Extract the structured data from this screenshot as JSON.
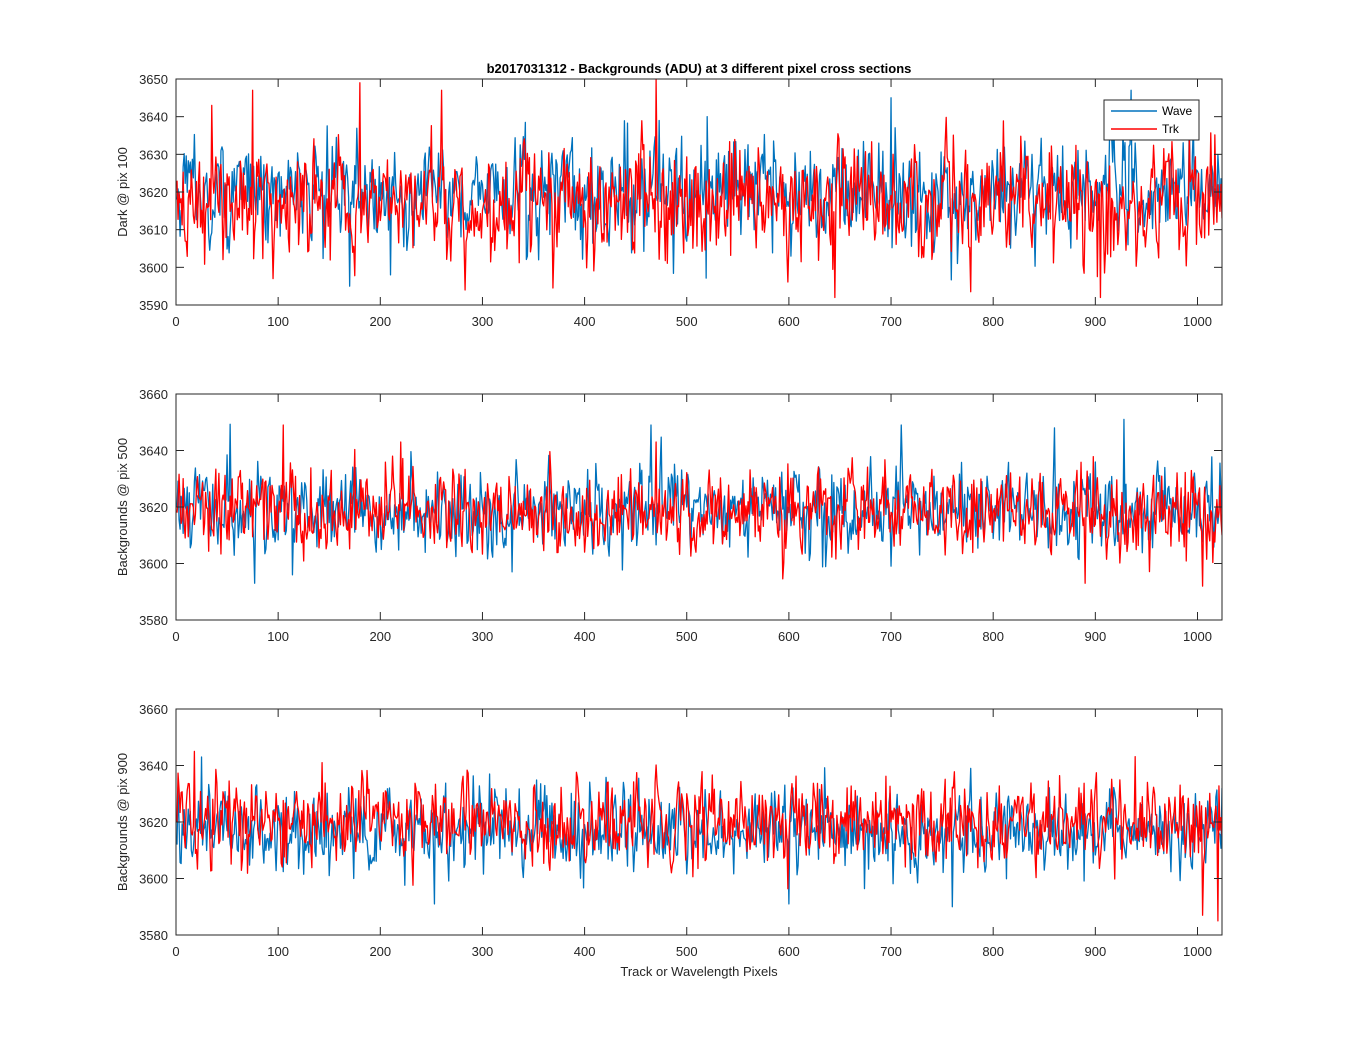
{
  "figure": {
    "title": "b2017031312 - Backgrounds (ADU) at 3 different pixel cross sections",
    "xlabel": "Track or Wavelength Pixels",
    "colors": {
      "Wave": "#0072BD",
      "Trk": "#FF0000",
      "axes": "#262626"
    }
  },
  "chart_data": [
    {
      "type": "line",
      "title": "b2017031312 - Backgrounds (ADU) at 3 different pixel cross sections",
      "ylabel": "Dark @ pix 100",
      "xlabel": "",
      "xlim": [
        0,
        1024
      ],
      "ylim": [
        3590,
        3650
      ],
      "xticks": [
        0,
        100,
        200,
        300,
        400,
        500,
        600,
        700,
        800,
        900,
        1000
      ],
      "yticks": [
        3590,
        3600,
        3610,
        3620,
        3630,
        3640,
        3650
      ],
      "legend": {
        "location": "top-right",
        "entries": [
          "Wave",
          "Trk"
        ]
      },
      "series": [
        {
          "name": "Wave",
          "color": "#0072BD",
          "n_points": 1024,
          "x_range": [
            1,
            1024
          ],
          "mean": 3620,
          "min": 3594,
          "max": 3647,
          "anchors": [
            [
              1,
              3618
            ],
            [
              30,
              3625
            ],
            [
              80,
              3614
            ],
            [
              170,
              3595
            ],
            [
              185,
              3627
            ],
            [
              210,
              3598
            ],
            [
              300,
              3622
            ],
            [
              450,
              3615
            ],
            [
              520,
              3640
            ],
            [
              620,
              3611
            ],
            [
              700,
              3645
            ],
            [
              830,
              3625
            ],
            [
              935,
              3647
            ],
            [
              985,
              3624
            ],
            [
              1024,
              3621
            ]
          ]
        },
        {
          "name": "Trk",
          "color": "#FF0000",
          "n_points": 1024,
          "x_range": [
            1,
            1024
          ],
          "mean": 3617,
          "min": 3592,
          "max": 3650,
          "anchors": [
            [
              1,
              3623
            ],
            [
              35,
              3643
            ],
            [
              75,
              3647
            ],
            [
              95,
              3597
            ],
            [
              180,
              3649
            ],
            [
              260,
              3647
            ],
            [
              283,
              3594
            ],
            [
              400,
              3615
            ],
            [
              470,
              3650
            ],
            [
              540,
              3613
            ],
            [
              645,
              3592
            ],
            [
              800,
              3611
            ],
            [
              905,
              3592
            ],
            [
              960,
              3607
            ],
            [
              1024,
              3613
            ]
          ]
        }
      ]
    },
    {
      "type": "line",
      "ylabel": "Backgrounds @ pix 500",
      "xlabel": "",
      "xlim": [
        0,
        1024
      ],
      "ylim": [
        3580,
        3660
      ],
      "xticks": [
        0,
        100,
        200,
        300,
        400,
        500,
        600,
        700,
        800,
        900,
        1000
      ],
      "yticks": [
        3580,
        3600,
        3620,
        3640,
        3660
      ],
      "series": [
        {
          "name": "Wave",
          "color": "#0072BD",
          "n_points": 1024,
          "x_range": [
            1,
            1024
          ],
          "mean": 3619,
          "min": 3593,
          "max": 3651,
          "anchors": [
            [
              1,
              3620
            ],
            [
              77,
              3593
            ],
            [
              114,
              3596
            ],
            [
              300,
              3620
            ],
            [
              465,
              3649
            ],
            [
              500,
              3620
            ],
            [
              710,
              3649
            ],
            [
              860,
              3648
            ],
            [
              928,
              3651
            ],
            [
              1024,
              3618
            ]
          ]
        },
        {
          "name": "Trk",
          "color": "#FF0000",
          "n_points": 1024,
          "x_range": [
            1,
            1024
          ],
          "mean": 3618,
          "min": 3592,
          "max": 3649,
          "anchors": [
            [
              1,
              3618
            ],
            [
              105,
              3649
            ],
            [
              220,
              3643
            ],
            [
              470,
              3643
            ],
            [
              600,
              3618
            ],
            [
              890,
              3593
            ],
            [
              1005,
              3592
            ],
            [
              1024,
              3610
            ]
          ]
        }
      ]
    },
    {
      "type": "line",
      "ylabel": "Backgrounds @ pix 900",
      "xlabel": "Track or Wavelength Pixels",
      "xlim": [
        0,
        1024
      ],
      "ylim": [
        3580,
        3660
      ],
      "xticks": [
        0,
        100,
        200,
        300,
        400,
        500,
        600,
        700,
        800,
        900,
        1000
      ],
      "yticks": [
        3580,
        3600,
        3620,
        3640,
        3660
      ],
      "series": [
        {
          "name": "Wave",
          "color": "#0072BD",
          "n_points": 1024,
          "x_range": [
            1,
            1024
          ],
          "mean": 3617,
          "min": 3590,
          "max": 3643,
          "anchors": [
            [
              1,
              3612
            ],
            [
              25,
              3643
            ],
            [
              253,
              3591
            ],
            [
              600,
              3591
            ],
            [
              760,
              3590
            ],
            [
              1024,
              3632
            ]
          ]
        },
        {
          "name": "Trk",
          "color": "#FF0000",
          "n_points": 1024,
          "x_range": [
            1,
            1024
          ],
          "mean": 3620,
          "min": 3585,
          "max": 3645,
          "anchors": [
            [
              1,
              3620
            ],
            [
              18,
              3645
            ],
            [
              143,
              3641
            ],
            [
              700,
              3620
            ],
            [
              1005,
              3587
            ],
            [
              1020,
              3585
            ],
            [
              1024,
              3615
            ]
          ]
        }
      ]
    }
  ]
}
